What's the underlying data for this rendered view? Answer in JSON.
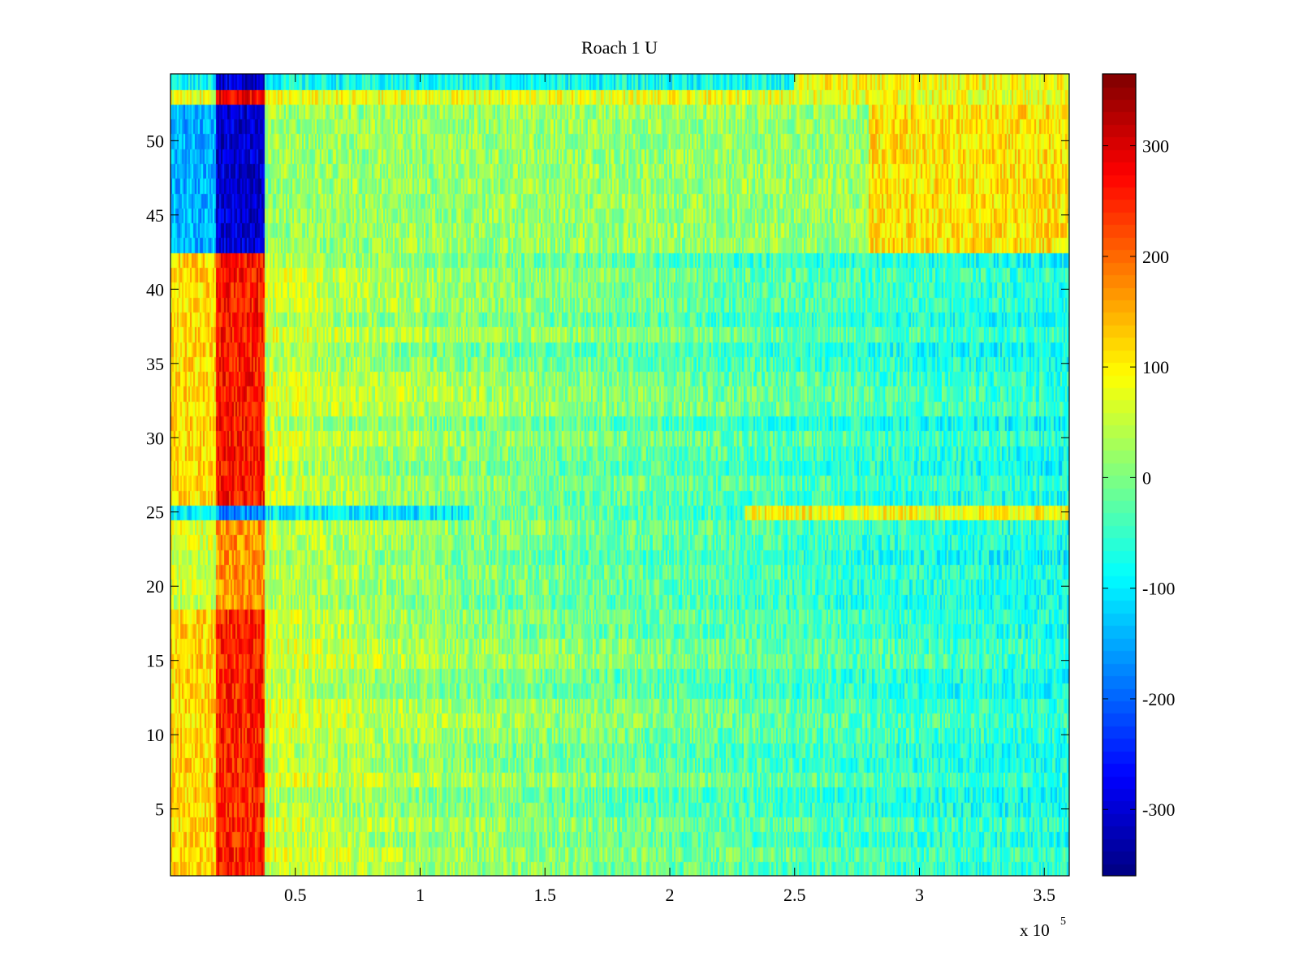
{
  "chart_data": {
    "type": "heatmap",
    "title": "Roach 1 U",
    "xlabel": "",
    "ylabel": "",
    "x_scale_label": "x 10",
    "x_scale_exponent": "5",
    "xlim": [
      0,
      3.6
    ],
    "ylim": [
      0.5,
      54.5
    ],
    "rows": 54,
    "x_ticks": [
      0.5,
      1,
      1.5,
      2,
      2.5,
      3,
      3.5
    ],
    "x_tick_labels": [
      "0.5",
      "1",
      "1.5",
      "2",
      "2.5",
      "3",
      "3.5"
    ],
    "y_ticks": [
      5,
      10,
      15,
      20,
      25,
      30,
      35,
      40,
      45,
      50
    ],
    "y_tick_labels": [
      "5",
      "10",
      "15",
      "20",
      "25",
      "30",
      "35",
      "40",
      "45",
      "50"
    ],
    "colorbar": {
      "colormap": "jet",
      "clim": [
        -360,
        365
      ],
      "ticks": [
        300,
        200,
        100,
        0,
        -100,
        -200,
        -300
      ],
      "tick_labels": [
        "300",
        "200",
        "100",
        "0",
        "-100",
        "-200",
        "-300"
      ]
    },
    "regions": [
      {
        "rows": [
          1,
          18
        ],
        "x_range": [
          0,
          0.18
        ],
        "value": 120
      },
      {
        "rows": [
          1,
          18
        ],
        "x_range": [
          0.18,
          0.38
        ],
        "value": 250
      },
      {
        "rows": [
          19,
          24
        ],
        "x_range": [
          0.18,
          0.38
        ],
        "value": 170
      },
      {
        "rows": [
          25,
          25
        ],
        "x_range": [
          0,
          1.2
        ],
        "value": -100
      },
      {
        "rows": [
          25,
          25
        ],
        "x_range": [
          0.18,
          0.38
        ],
        "value": -170
      },
      {
        "rows": [
          25,
          25
        ],
        "x_range": [
          2.3,
          3.6
        ],
        "value": 90
      },
      {
        "rows": [
          26,
          42
        ],
        "x_range": [
          0,
          0.18
        ],
        "value": 120
      },
      {
        "rows": [
          26,
          42
        ],
        "x_range": [
          0.18,
          0.38
        ],
        "value": 260
      },
      {
        "rows": [
          43,
          52
        ],
        "x_range": [
          0,
          0.18
        ],
        "value": -140
      },
      {
        "rows": [
          43,
          52
        ],
        "x_range": [
          0.18,
          0.38
        ],
        "value": -300
      },
      {
        "rows": [
          43,
          52
        ],
        "x_range": [
          0.38,
          3.6
        ],
        "value": 20
      },
      {
        "rows": [
          43,
          52
        ],
        "x_range": [
          2.8,
          3.6
        ],
        "value": 110
      },
      {
        "rows": [
          53,
          53
        ],
        "x_range": [
          0,
          3.6
        ],
        "value": 80
      },
      {
        "rows": [
          53,
          53
        ],
        "x_range": [
          0.18,
          0.38
        ],
        "value": 280
      },
      {
        "rows": [
          54,
          54
        ],
        "x_range": [
          0,
          3.6
        ],
        "value": -80
      },
      {
        "rows": [
          54,
          54
        ],
        "x_range": [
          0.18,
          0.38
        ],
        "value": -300
      },
      {
        "rows": [
          54,
          54
        ],
        "x_range": [
          2.5,
          3.6
        ],
        "value": 90
      }
    ],
    "background_trend": {
      "x": [
        0,
        0.5,
        1,
        2,
        3,
        3.6
      ],
      "value": [
        70,
        50,
        20,
        -20,
        -55,
        -70
      ]
    }
  }
}
